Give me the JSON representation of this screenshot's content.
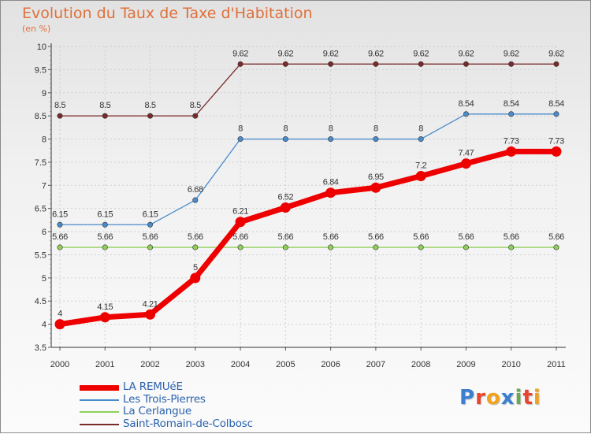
{
  "title": "Evolution du Taux de Taxe d'Habitation",
  "subtitle": "(en %)",
  "logo": {
    "letters": [
      "P",
      "r",
      "o",
      "x",
      "i",
      "t",
      "i"
    ],
    "colors": [
      "#3a7fd0",
      "#e8442e",
      "#f2a21b",
      "#3a7fd0",
      "#6aa84f",
      "#e8442e",
      "#f2a21b"
    ]
  },
  "chart_data": {
    "type": "line",
    "x": [
      "2000",
      "2001",
      "2002",
      "2003",
      "2004",
      "2005",
      "2006",
      "2007",
      "2008",
      "2009",
      "2010",
      "2011"
    ],
    "ylim": [
      3.5,
      10
    ],
    "yticks": [
      "3.5",
      "4",
      "4.5",
      "5",
      "5.5",
      "6",
      "6.5",
      "7",
      "7.5",
      "8",
      "8.5",
      "9",
      "9.5",
      "10"
    ],
    "grid": true,
    "legend_position": "bottom-left",
    "series": [
      {
        "name": "Saint-Romain-de-Colbosc",
        "color": "#7a2a2a",
        "values": [
          8.5,
          8.5,
          8.5,
          8.5,
          9.62,
          9.62,
          9.62,
          9.62,
          9.62,
          9.62,
          9.62,
          9.62
        ],
        "labels": [
          "8.5",
          "8.5",
          "8.5",
          "8.5",
          "9.62",
          "9.62",
          "9.62",
          "9.62",
          "9.62",
          "9.62",
          "9.62",
          "9.62"
        ]
      },
      {
        "name": "Les Trois-Pierres",
        "color": "#4a8ccc",
        "values": [
          6.15,
          6.15,
          6.15,
          6.68,
          8,
          8,
          8,
          8,
          8,
          8.54,
          8.54,
          8.54
        ],
        "labels": [
          "6.15",
          "6.15",
          "6.15",
          "6.68",
          "8",
          "8",
          "8",
          "8",
          "8",
          "8.54",
          "8.54",
          "8.54"
        ]
      },
      {
        "name": "La Cerlangue",
        "color": "#8fd05a",
        "values": [
          5.66,
          5.66,
          5.66,
          5.66,
          5.66,
          5.66,
          5.66,
          5.66,
          5.66,
          5.66,
          5.66,
          5.66
        ],
        "labels": [
          "5.66",
          "5.66",
          "5.66",
          "5.66",
          "5.66",
          "5.66",
          "5.66",
          "5.66",
          "5.66",
          "5.66",
          "5.66",
          "5.66"
        ]
      },
      {
        "name": "LA REMUéE",
        "color": "#ee0000",
        "values": [
          4,
          4.15,
          4.21,
          5,
          6.21,
          6.52,
          6.84,
          6.95,
          7.2,
          7.47,
          7.73,
          7.73
        ],
        "labels": [
          "4",
          "4.15",
          "4.21",
          "5",
          "6.21",
          "6.52",
          "6.84",
          "6.95",
          "7.2",
          "7.47",
          "7.73",
          "7.73"
        ]
      }
    ],
    "legend_order": [
      "LA REMUéE",
      "Les Trois-Pierres",
      "La Cerlangue",
      "Saint-Romain-de-Colbosc"
    ]
  }
}
